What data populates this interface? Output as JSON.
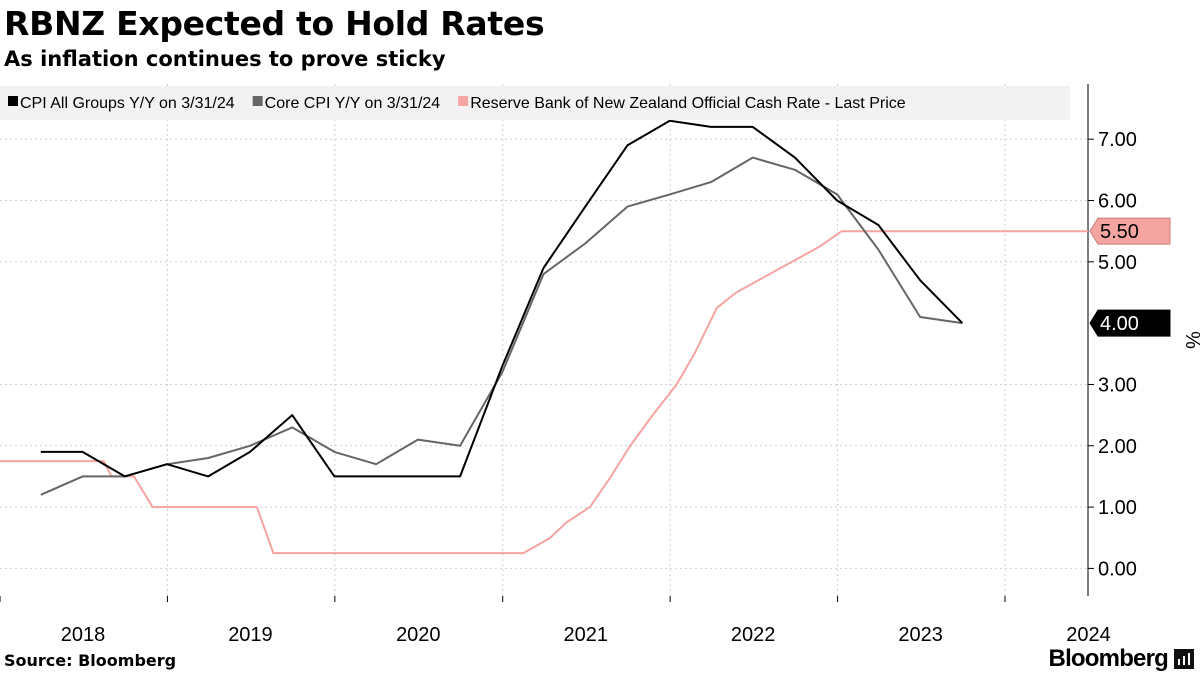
{
  "header": {
    "title": "RBNZ Expected to Hold Rates",
    "subtitle": "As inflation continues to prove sticky"
  },
  "footer": {
    "source": "Source: Bloomberg",
    "brand": "Bloomberg"
  },
  "colors": {
    "cpi": "#000000",
    "core": "#666666",
    "ocr": "#f4a5a1",
    "grid": "#cfcfcf",
    "legend_bg": "#f2f2f2"
  },
  "chart_data": {
    "type": "line",
    "xlabel": "",
    "ylabel": "%",
    "ylim": [
      -0.45,
      7.9
    ],
    "xlim": [
      "2018-01-01",
      "2024-06-30"
    ],
    "grid": true,
    "legend_position": "top",
    "y_ticks": [
      "0.00",
      "1.00",
      "2.00",
      "3.00",
      "5.00",
      "6.00",
      "7.00"
    ],
    "x_ticks": [
      "2018",
      "2019",
      "2020",
      "2021",
      "2022",
      "2023",
      "2024"
    ],
    "last_value_labels": [
      {
        "series": "Reserve Bank of New Zealand Official Cash Rate - Last Price",
        "value": 5.5,
        "label": "5.50"
      },
      {
        "series": "CPI All Groups Y/Y on 3/31/24",
        "value": 4.0,
        "label": "4.00"
      }
    ],
    "series": [
      {
        "name": "CPI All Groups Y/Y on 3/31/24",
        "color": "#000000",
        "points": [
          [
            "2018-03-31",
            1.9
          ],
          [
            "2018-06-30",
            1.9
          ],
          [
            "2018-09-30",
            1.5
          ],
          [
            "2018-12-31",
            1.7
          ],
          [
            "2019-03-31",
            1.5
          ],
          [
            "2019-06-30",
            1.9
          ],
          [
            "2019-09-30",
            2.5
          ],
          [
            "2019-12-31",
            1.5
          ],
          [
            "2020-03-31",
            1.5
          ],
          [
            "2020-06-30",
            1.5
          ],
          [
            "2020-09-30",
            1.5
          ],
          [
            "2020-12-31",
            3.3
          ],
          [
            "2021-03-31",
            4.9
          ],
          [
            "2021-06-30",
            5.9
          ],
          [
            "2021-09-30",
            6.9
          ],
          [
            "2021-12-31",
            7.3
          ],
          [
            "2022-03-31",
            7.2
          ],
          [
            "2022-06-30",
            7.2
          ],
          [
            "2022-09-30",
            6.7
          ],
          [
            "2022-12-31",
            6.0
          ],
          [
            "2023-03-31",
            5.6
          ],
          [
            "2023-06-30",
            4.7
          ],
          [
            "2023-09-30",
            4.0
          ]
        ]
      },
      {
        "name": "Core CPI Y/Y on 3/31/24",
        "color": "#666666",
        "points": [
          [
            "2018-03-31",
            1.2
          ],
          [
            "2018-06-30",
            1.5
          ],
          [
            "2018-09-30",
            1.5
          ],
          [
            "2018-12-31",
            1.7
          ],
          [
            "2019-03-31",
            1.8
          ],
          [
            "2019-06-30",
            2.0
          ],
          [
            "2019-09-30",
            2.3
          ],
          [
            "2019-12-31",
            1.9
          ],
          [
            "2020-03-31",
            1.7
          ],
          [
            "2020-06-30",
            2.1
          ],
          [
            "2020-09-30",
            2.0
          ],
          [
            "2020-12-31",
            3.2
          ],
          [
            "2021-03-31",
            4.8
          ],
          [
            "2021-06-30",
            5.3
          ],
          [
            "2021-09-30",
            5.9
          ],
          [
            "2021-12-31",
            6.1
          ],
          [
            "2022-03-31",
            6.3
          ],
          [
            "2022-06-30",
            6.7
          ],
          [
            "2022-09-30",
            6.5
          ],
          [
            "2022-12-31",
            6.1
          ],
          [
            "2023-03-31",
            5.2
          ],
          [
            "2023-06-30",
            4.1
          ],
          [
            "2023-09-30",
            4.0
          ]
        ]
      },
      {
        "name": "Reserve Bank of New Zealand Official Cash Rate - Last Price",
        "color": "#f4a5a1",
        "points": [
          [
            "2018-01-01",
            1.75
          ],
          [
            "2018-08-15",
            1.75
          ],
          [
            "2018-09-01",
            1.5
          ],
          [
            "2018-10-20",
            1.5
          ],
          [
            "2018-11-30",
            1.0
          ],
          [
            "2019-07-15",
            1.0
          ],
          [
            "2019-08-20",
            0.25
          ],
          [
            "2021-02-15",
            0.25
          ],
          [
            "2021-04-15",
            0.5
          ],
          [
            "2021-05-20",
            0.75
          ],
          [
            "2021-07-10",
            1.0
          ],
          [
            "2021-08-25",
            1.5
          ],
          [
            "2021-10-06",
            2.0
          ],
          [
            "2021-11-24",
            2.5
          ],
          [
            "2022-01-15",
            3.0
          ],
          [
            "2022-02-23",
            3.5
          ],
          [
            "2022-04-13",
            4.25
          ],
          [
            "2022-05-25",
            4.5
          ],
          [
            "2022-11-23",
            5.25
          ],
          [
            "2023-01-10",
            5.5
          ],
          [
            "2023-02-22",
            5.5
          ],
          [
            "2024-06-30",
            5.5
          ]
        ]
      }
    ]
  }
}
